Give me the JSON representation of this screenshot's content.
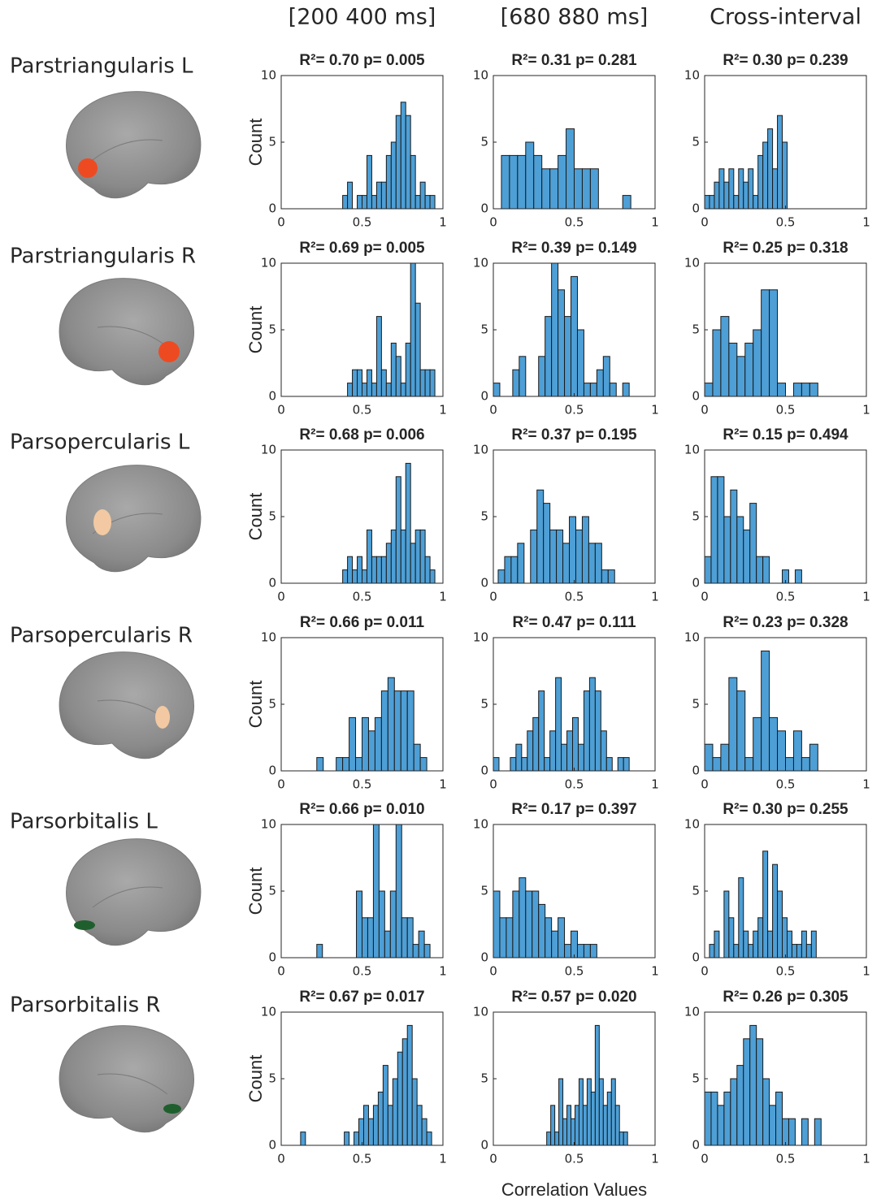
{
  "column_titles": [
    "[200 400 ms]",
    "[680 880 ms]",
    "Cross-interval"
  ],
  "row_labels": [
    "Parstriangularis L",
    "Parstriangularis R",
    "Parsopercularis L",
    "Parsopercularis R",
    "Parsorbitalis L",
    "Parsorbitalis R"
  ],
  "x_label": "Correlation Values",
  "chart_data": [
    {
      "type": "histogram",
      "title": "R²= 0.70  p= 0.005",
      "ylabel": "Count",
      "color": "#4d9fd6",
      "xlim": [
        0,
        1
      ],
      "ylim": [
        0,
        10
      ],
      "xticks": [
        0,
        0.5,
        1
      ],
      "yticks": [
        0,
        5,
        10
      ],
      "bins": [
        0.38,
        0.41,
        0.44,
        0.47,
        0.5,
        0.53,
        0.56,
        0.59,
        0.62,
        0.65,
        0.68,
        0.71,
        0.74,
        0.77,
        0.8,
        0.83,
        0.86,
        0.89,
        0.92,
        0.95
      ],
      "counts": [
        1,
        2,
        0,
        1,
        1,
        4,
        1,
        2,
        2,
        4,
        5,
        7,
        8,
        7,
        4,
        1,
        2,
        1,
        1
      ]
    },
    {
      "type": "histogram",
      "title": "R²= 0.31  p= 0.281",
      "color": "#4d9fd6",
      "xlim": [
        0,
        1
      ],
      "ylim": [
        0,
        10
      ],
      "xticks": [
        0,
        0.5,
        1
      ],
      "yticks": [
        0,
        5,
        10
      ],
      "bins": [
        0.05,
        0.1,
        0.15,
        0.2,
        0.25,
        0.3,
        0.35,
        0.4,
        0.45,
        0.5,
        0.55,
        0.6,
        0.65,
        0.7,
        0.75,
        0.8,
        0.85
      ],
      "counts": [
        4,
        4,
        4,
        5,
        4,
        3,
        3,
        4,
        6,
        3,
        3,
        3,
        0,
        0,
        0,
        1
      ]
    },
    {
      "type": "histogram",
      "title": "R²= 0.30  p= 0.239",
      "color": "#4d9fd6",
      "xlim": [
        0,
        1
      ],
      "ylim": [
        0,
        10
      ],
      "xticks": [
        0,
        0.5,
        1
      ],
      "yticks": [
        0,
        5,
        10
      ],
      "bins": [
        0,
        0.03,
        0.06,
        0.09,
        0.12,
        0.15,
        0.18,
        0.21,
        0.24,
        0.27,
        0.3,
        0.33,
        0.36,
        0.39,
        0.42,
        0.45,
        0.48,
        0.51
      ],
      "counts": [
        1,
        1,
        2,
        3,
        2,
        3,
        1,
        3,
        2,
        3,
        1,
        4,
        5,
        6,
        3,
        7,
        5
      ]
    },
    {
      "type": "histogram",
      "title": "R²= 0.69  p= 0.005",
      "ylabel": "Count",
      "color": "#4d9fd6",
      "xlim": [
        0,
        1
      ],
      "ylim": [
        0,
        10
      ],
      "xticks": [
        0,
        0.5,
        1
      ],
      "yticks": [
        0,
        5,
        10
      ],
      "bins": [
        0.41,
        0.44,
        0.47,
        0.5,
        0.53,
        0.56,
        0.59,
        0.62,
        0.65,
        0.68,
        0.71,
        0.74,
        0.77,
        0.8,
        0.83,
        0.86,
        0.89,
        0.92,
        0.95
      ],
      "counts": [
        1,
        2,
        2,
        1,
        2,
        1,
        6,
        2,
        1,
        4,
        3,
        1,
        4,
        10,
        7,
        2,
        2,
        2
      ]
    },
    {
      "type": "histogram",
      "title": "R²= 0.39  p= 0.149",
      "color": "#4d9fd6",
      "xlim": [
        0,
        1
      ],
      "ylim": [
        0,
        10
      ],
      "xticks": [
        0,
        0.5,
        1
      ],
      "yticks": [
        0,
        5,
        10
      ],
      "bins": [
        0,
        0.04,
        0.08,
        0.12,
        0.16,
        0.2,
        0.24,
        0.28,
        0.32,
        0.36,
        0.4,
        0.44,
        0.48,
        0.52,
        0.56,
        0.6,
        0.64,
        0.68,
        0.72,
        0.76,
        0.8,
        0.84
      ],
      "counts": [
        1,
        0,
        0,
        2,
        3,
        0,
        0,
        3,
        6,
        10,
        8,
        6,
        9,
        5,
        1,
        1,
        2,
        3,
        1,
        0,
        1
      ]
    },
    {
      "type": "histogram",
      "title": "R²= 0.25  p= 0.318",
      "color": "#4d9fd6",
      "xlim": [
        0,
        1
      ],
      "ylim": [
        0,
        10
      ],
      "xticks": [
        0,
        0.5,
        1
      ],
      "yticks": [
        0,
        5,
        10
      ],
      "bins": [
        0,
        0.05,
        0.1,
        0.15,
        0.2,
        0.25,
        0.3,
        0.35,
        0.4,
        0.45,
        0.5,
        0.55,
        0.6,
        0.65,
        0.7
      ],
      "counts": [
        1,
        5,
        6,
        4,
        3,
        4,
        5,
        8,
        8,
        1,
        0,
        1,
        1,
        1
      ]
    },
    {
      "type": "histogram",
      "title": "R²= 0.68  p= 0.006",
      "ylabel": "Count",
      "color": "#4d9fd6",
      "xlim": [
        0,
        1
      ],
      "ylim": [
        0,
        10
      ],
      "xticks": [
        0,
        0.5,
        1
      ],
      "yticks": [
        0,
        5,
        10
      ],
      "bins": [
        0.38,
        0.41,
        0.44,
        0.47,
        0.5,
        0.53,
        0.56,
        0.59,
        0.62,
        0.65,
        0.68,
        0.71,
        0.74,
        0.77,
        0.8,
        0.83,
        0.86,
        0.89,
        0.92,
        0.95
      ],
      "counts": [
        1,
        2,
        1,
        2,
        1,
        4,
        2,
        2,
        2,
        3,
        4,
        8,
        4,
        9,
        3,
        4,
        4,
        2,
        1
      ]
    },
    {
      "type": "histogram",
      "title": "R²= 0.37  p= 0.195",
      "color": "#4d9fd6",
      "xlim": [
        0,
        1
      ],
      "ylim": [
        0,
        10
      ],
      "xticks": [
        0,
        0.5,
        1
      ],
      "yticks": [
        0,
        5,
        10
      ],
      "bins": [
        0.03,
        0.07,
        0.11,
        0.15,
        0.19,
        0.23,
        0.27,
        0.31,
        0.35,
        0.39,
        0.43,
        0.47,
        0.51,
        0.55,
        0.59,
        0.63,
        0.67,
        0.71,
        0.75
      ],
      "counts": [
        1,
        2,
        2,
        3,
        0,
        4,
        7,
        6,
        4,
        4,
        3,
        5,
        4,
        5,
        3,
        3,
        1,
        1
      ]
    },
    {
      "type": "histogram",
      "title": "R²= 0.15  p= 0.494",
      "color": "#4d9fd6",
      "xlim": [
        0,
        1
      ],
      "ylim": [
        0,
        10
      ],
      "xticks": [
        0,
        0.5,
        1
      ],
      "yticks": [
        0,
        5,
        10
      ],
      "bins": [
        0,
        0.04,
        0.08,
        0.12,
        0.16,
        0.2,
        0.24,
        0.28,
        0.32,
        0.36,
        0.4,
        0.44,
        0.48,
        0.52,
        0.56,
        0.6
      ],
      "counts": [
        2,
        8,
        8,
        5,
        7,
        5,
        4,
        6,
        2,
        2,
        0,
        0,
        1,
        0,
        1
      ]
    },
    {
      "type": "histogram",
      "title": "R²= 0.66  p= 0.011",
      "ylabel": "Count",
      "color": "#4d9fd6",
      "xlim": [
        0,
        1
      ],
      "ylim": [
        0,
        10
      ],
      "xticks": [
        0,
        0.5,
        1
      ],
      "yticks": [
        0,
        5,
        10
      ],
      "bins": [
        0.22,
        0.26,
        0.3,
        0.34,
        0.38,
        0.42,
        0.46,
        0.5,
        0.54,
        0.58,
        0.62,
        0.66,
        0.7,
        0.74,
        0.78,
        0.82,
        0.86,
        0.9
      ],
      "counts": [
        1,
        0,
        0,
        1,
        1,
        4,
        1,
        4,
        3,
        4,
        6,
        7,
        6,
        6,
        6,
        2,
        1
      ]
    },
    {
      "type": "histogram",
      "title": "R²= 0.47  p= 0.111",
      "color": "#4d9fd6",
      "xlim": [
        0,
        1
      ],
      "ylim": [
        0,
        10
      ],
      "xticks": [
        0,
        0.5,
        1
      ],
      "yticks": [
        0,
        5,
        10
      ],
      "bins": [
        0,
        0.035,
        0.07,
        0.105,
        0.14,
        0.175,
        0.21,
        0.245,
        0.28,
        0.315,
        0.35,
        0.385,
        0.42,
        0.455,
        0.49,
        0.525,
        0.56,
        0.595,
        0.63,
        0.665,
        0.7,
        0.735,
        0.77,
        0.805,
        0.84
      ],
      "counts": [
        1,
        0,
        0,
        1,
        2,
        1,
        3,
        4,
        6,
        1,
        3,
        7,
        2,
        3,
        4,
        2,
        6,
        7,
        6,
        3,
        1,
        0,
        1,
        1
      ]
    },
    {
      "type": "histogram",
      "title": "R²= 0.23  p= 0.328",
      "color": "#4d9fd6",
      "xlim": [
        0,
        1
      ],
      "ylim": [
        0,
        10
      ],
      "xticks": [
        0,
        0.5,
        1
      ],
      "yticks": [
        0,
        5,
        10
      ],
      "bins": [
        0,
        0.05,
        0.1,
        0.15,
        0.2,
        0.25,
        0.3,
        0.35,
        0.4,
        0.45,
        0.5,
        0.55,
        0.6,
        0.65,
        0.7
      ],
      "counts": [
        2,
        1,
        2,
        7,
        6,
        1,
        4,
        9,
        4,
        3,
        1,
        3,
        1,
        2
      ]
    },
    {
      "type": "histogram",
      "title": "R²= 0.66  p= 0.010",
      "ylabel": "Count",
      "color": "#4d9fd6",
      "xlim": [
        0,
        1
      ],
      "ylim": [
        0,
        10
      ],
      "xticks": [
        0,
        0.5,
        1
      ],
      "yticks": [
        0,
        5,
        10
      ],
      "bins": [
        0.22,
        0.255,
        0.29,
        0.325,
        0.36,
        0.395,
        0.43,
        0.465,
        0.5,
        0.535,
        0.57,
        0.605,
        0.64,
        0.675,
        0.71,
        0.745,
        0.78,
        0.815,
        0.85,
        0.885,
        0.92
      ],
      "counts": [
        1,
        0,
        0,
        0,
        0,
        0,
        0,
        5,
        3,
        3,
        10,
        5,
        2,
        5,
        10,
        3,
        3,
        1,
        2,
        1
      ]
    },
    {
      "type": "histogram",
      "title": "R²= 0.17  p= 0.397",
      "color": "#4d9fd6",
      "xlim": [
        0,
        1
      ],
      "ylim": [
        0,
        10
      ],
      "xticks": [
        0,
        0.5,
        1
      ],
      "yticks": [
        0,
        5,
        10
      ],
      "bins": [
        0,
        0.04,
        0.08,
        0.12,
        0.16,
        0.2,
        0.24,
        0.28,
        0.32,
        0.36,
        0.4,
        0.44,
        0.48,
        0.52,
        0.56,
        0.6,
        0.64
      ],
      "counts": [
        5,
        3,
        3,
        5,
        6,
        5,
        5,
        4,
        3,
        2,
        3,
        1,
        2,
        1,
        1,
        1
      ]
    },
    {
      "type": "histogram",
      "title": "R²= 0.30  p= 0.255",
      "color": "#4d9fd6",
      "xlim": [
        0,
        1
      ],
      "ylim": [
        0,
        10
      ],
      "xticks": [
        0,
        0.5,
        1
      ],
      "yticks": [
        0,
        5,
        10
      ],
      "bins": [
        0.03,
        0.06,
        0.09,
        0.12,
        0.15,
        0.18,
        0.21,
        0.24,
        0.27,
        0.3,
        0.33,
        0.36,
        0.39,
        0.42,
        0.45,
        0.48,
        0.51,
        0.54,
        0.57,
        0.6,
        0.63,
        0.66,
        0.69
      ],
      "counts": [
        1,
        2,
        0,
        5,
        3,
        1,
        6,
        2,
        1,
        2,
        3,
        8,
        2,
        7,
        5,
        3,
        2,
        1,
        1,
        2,
        1,
        2
      ]
    },
    {
      "type": "histogram",
      "title": "R²= 0.67  p= 0.017",
      "ylabel": "Count",
      "color": "#4d9fd6",
      "xlim": [
        0,
        1
      ],
      "ylim": [
        0,
        10
      ],
      "xticks": [
        0,
        0.5,
        1
      ],
      "yticks": [
        0,
        5,
        10
      ],
      "bins": [
        0.12,
        0.15,
        0.18,
        0.21,
        0.24,
        0.27,
        0.3,
        0.33,
        0.36,
        0.39,
        0.42,
        0.45,
        0.48,
        0.51,
        0.54,
        0.57,
        0.6,
        0.63,
        0.66,
        0.69,
        0.72,
        0.75,
        0.78,
        0.81,
        0.84,
        0.87,
        0.9,
        0.93
      ],
      "counts": [
        1,
        0,
        0,
        0,
        0,
        0,
        0,
        0,
        0,
        1,
        0,
        1,
        2,
        3,
        2,
        3,
        4,
        6,
        3,
        5,
        7,
        8,
        9,
        5,
        3,
        2,
        1
      ]
    },
    {
      "type": "histogram",
      "title": "R²= 0.57  p= 0.020",
      "color": "#4d9fd6",
      "xlim": [
        0,
        1
      ],
      "ylim": [
        0,
        10
      ],
      "xticks": [
        0,
        0.5,
        1
      ],
      "yticks": [
        0,
        5,
        10
      ],
      "bins": [
        0.33,
        0.355,
        0.38,
        0.405,
        0.43,
        0.455,
        0.48,
        0.505,
        0.53,
        0.555,
        0.58,
        0.605,
        0.63,
        0.655,
        0.68,
        0.705,
        0.73,
        0.755,
        0.78,
        0.805,
        0.83
      ],
      "counts": [
        1,
        3,
        1,
        5,
        2,
        3,
        2,
        3,
        5,
        3,
        5,
        4,
        9,
        5,
        3,
        4,
        5,
        3,
        1,
        1
      ]
    },
    {
      "type": "histogram",
      "title": "R²= 0.26  p= 0.305",
      "color": "#4d9fd6",
      "xlim": [
        0,
        1
      ],
      "ylim": [
        0,
        10
      ],
      "xticks": [
        0,
        0.5,
        1
      ],
      "yticks": [
        0,
        5,
        10
      ],
      "bins": [
        0,
        0.04,
        0.08,
        0.12,
        0.16,
        0.2,
        0.24,
        0.28,
        0.32,
        0.36,
        0.4,
        0.44,
        0.48,
        0.52,
        0.56,
        0.6,
        0.64,
        0.68,
        0.72
      ],
      "counts": [
        4,
        4,
        3,
        4,
        5,
        6,
        8,
        9,
        8,
        5,
        3,
        4,
        2,
        2,
        0,
        2,
        0,
        2
      ]
    }
  ]
}
